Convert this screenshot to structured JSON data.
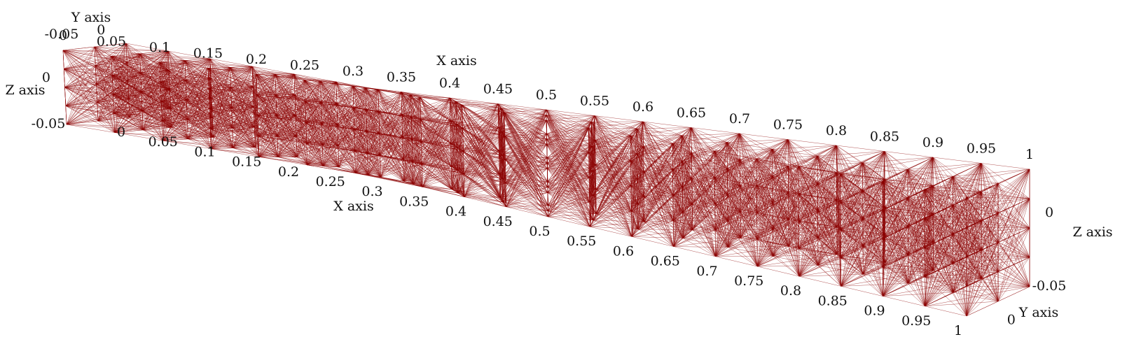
{
  "chart_data": {
    "type": "mesh3d",
    "x_label": "X axis",
    "y_label": "Y axis",
    "z_label": "Z axis",
    "xlim": [
      0,
      1
    ],
    "xticks": [
      0,
      0.05,
      0.1,
      0.15,
      0.2,
      0.25,
      0.3,
      0.35,
      0.4,
      0.45,
      0.5,
      0.55,
      0.6,
      0.65,
      0.7,
      0.75,
      0.8,
      0.85,
      0.9,
      0.95,
      1
    ],
    "ylim": [
      -0.05,
      0.03
    ],
    "yticks": [
      -0.05,
      0
    ],
    "zlim": [
      -0.05,
      0.03
    ],
    "zticks": [
      -0.05,
      0
    ],
    "color": "#8b0000"
  }
}
